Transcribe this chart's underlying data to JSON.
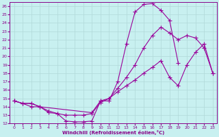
{
  "xlabel": "Windchill (Refroidissement éolien,°C)",
  "bg_color": "#c8f0f0",
  "line_color": "#990099",
  "grid_color": "#b0d8d8",
  "axis_color": "#880088",
  "xlim": [
    -0.5,
    23.5
  ],
  "ylim": [
    12,
    26.5
  ],
  "xticks": [
    0,
    1,
    2,
    3,
    4,
    5,
    6,
    7,
    8,
    9,
    10,
    11,
    12,
    13,
    14,
    15,
    16,
    17,
    18,
    19,
    20,
    21,
    22,
    23
  ],
  "yticks": [
    12,
    13,
    14,
    15,
    16,
    17,
    18,
    19,
    20,
    21,
    22,
    23,
    24,
    25,
    26
  ],
  "curve1_x": [
    0,
    1,
    2,
    3,
    4,
    5,
    6,
    7,
    8,
    9,
    10,
    11,
    12,
    13,
    14,
    15,
    16,
    17,
    18,
    19
  ],
  "curve1_y": [
    14.7,
    14.4,
    14.4,
    14.0,
    13.3,
    13.2,
    12.3,
    12.2,
    12.2,
    12.3,
    14.7,
    14.7,
    17.0,
    21.5,
    25.3,
    26.2,
    26.3,
    25.5,
    24.3,
    19.2
  ],
  "curve2_x": [
    0,
    1,
    2,
    3,
    4,
    5,
    6,
    7,
    8,
    9,
    10,
    11,
    12,
    13,
    14,
    15,
    16,
    17,
    18,
    19,
    20,
    21,
    22,
    23
  ],
  "curve2_y": [
    14.7,
    14.4,
    14.0,
    14.0,
    13.5,
    13.2,
    13.0,
    13.0,
    13.0,
    13.2,
    14.5,
    15.0,
    15.8,
    16.5,
    17.2,
    18.0,
    18.7,
    19.5,
    17.5,
    16.5,
    19.0,
    20.5,
    21.5,
    18.0
  ],
  "curve3_x": [
    0,
    1,
    2,
    3,
    9,
    10,
    11,
    12,
    13,
    14,
    15,
    16,
    17,
    18,
    19,
    20,
    21,
    22,
    23
  ],
  "curve3_y": [
    14.7,
    14.4,
    14.4,
    14.0,
    13.3,
    14.7,
    15.0,
    16.2,
    17.5,
    19.0,
    21.0,
    22.5,
    23.5,
    22.8,
    22.0,
    22.5,
    22.2,
    21.0,
    18.0
  ]
}
